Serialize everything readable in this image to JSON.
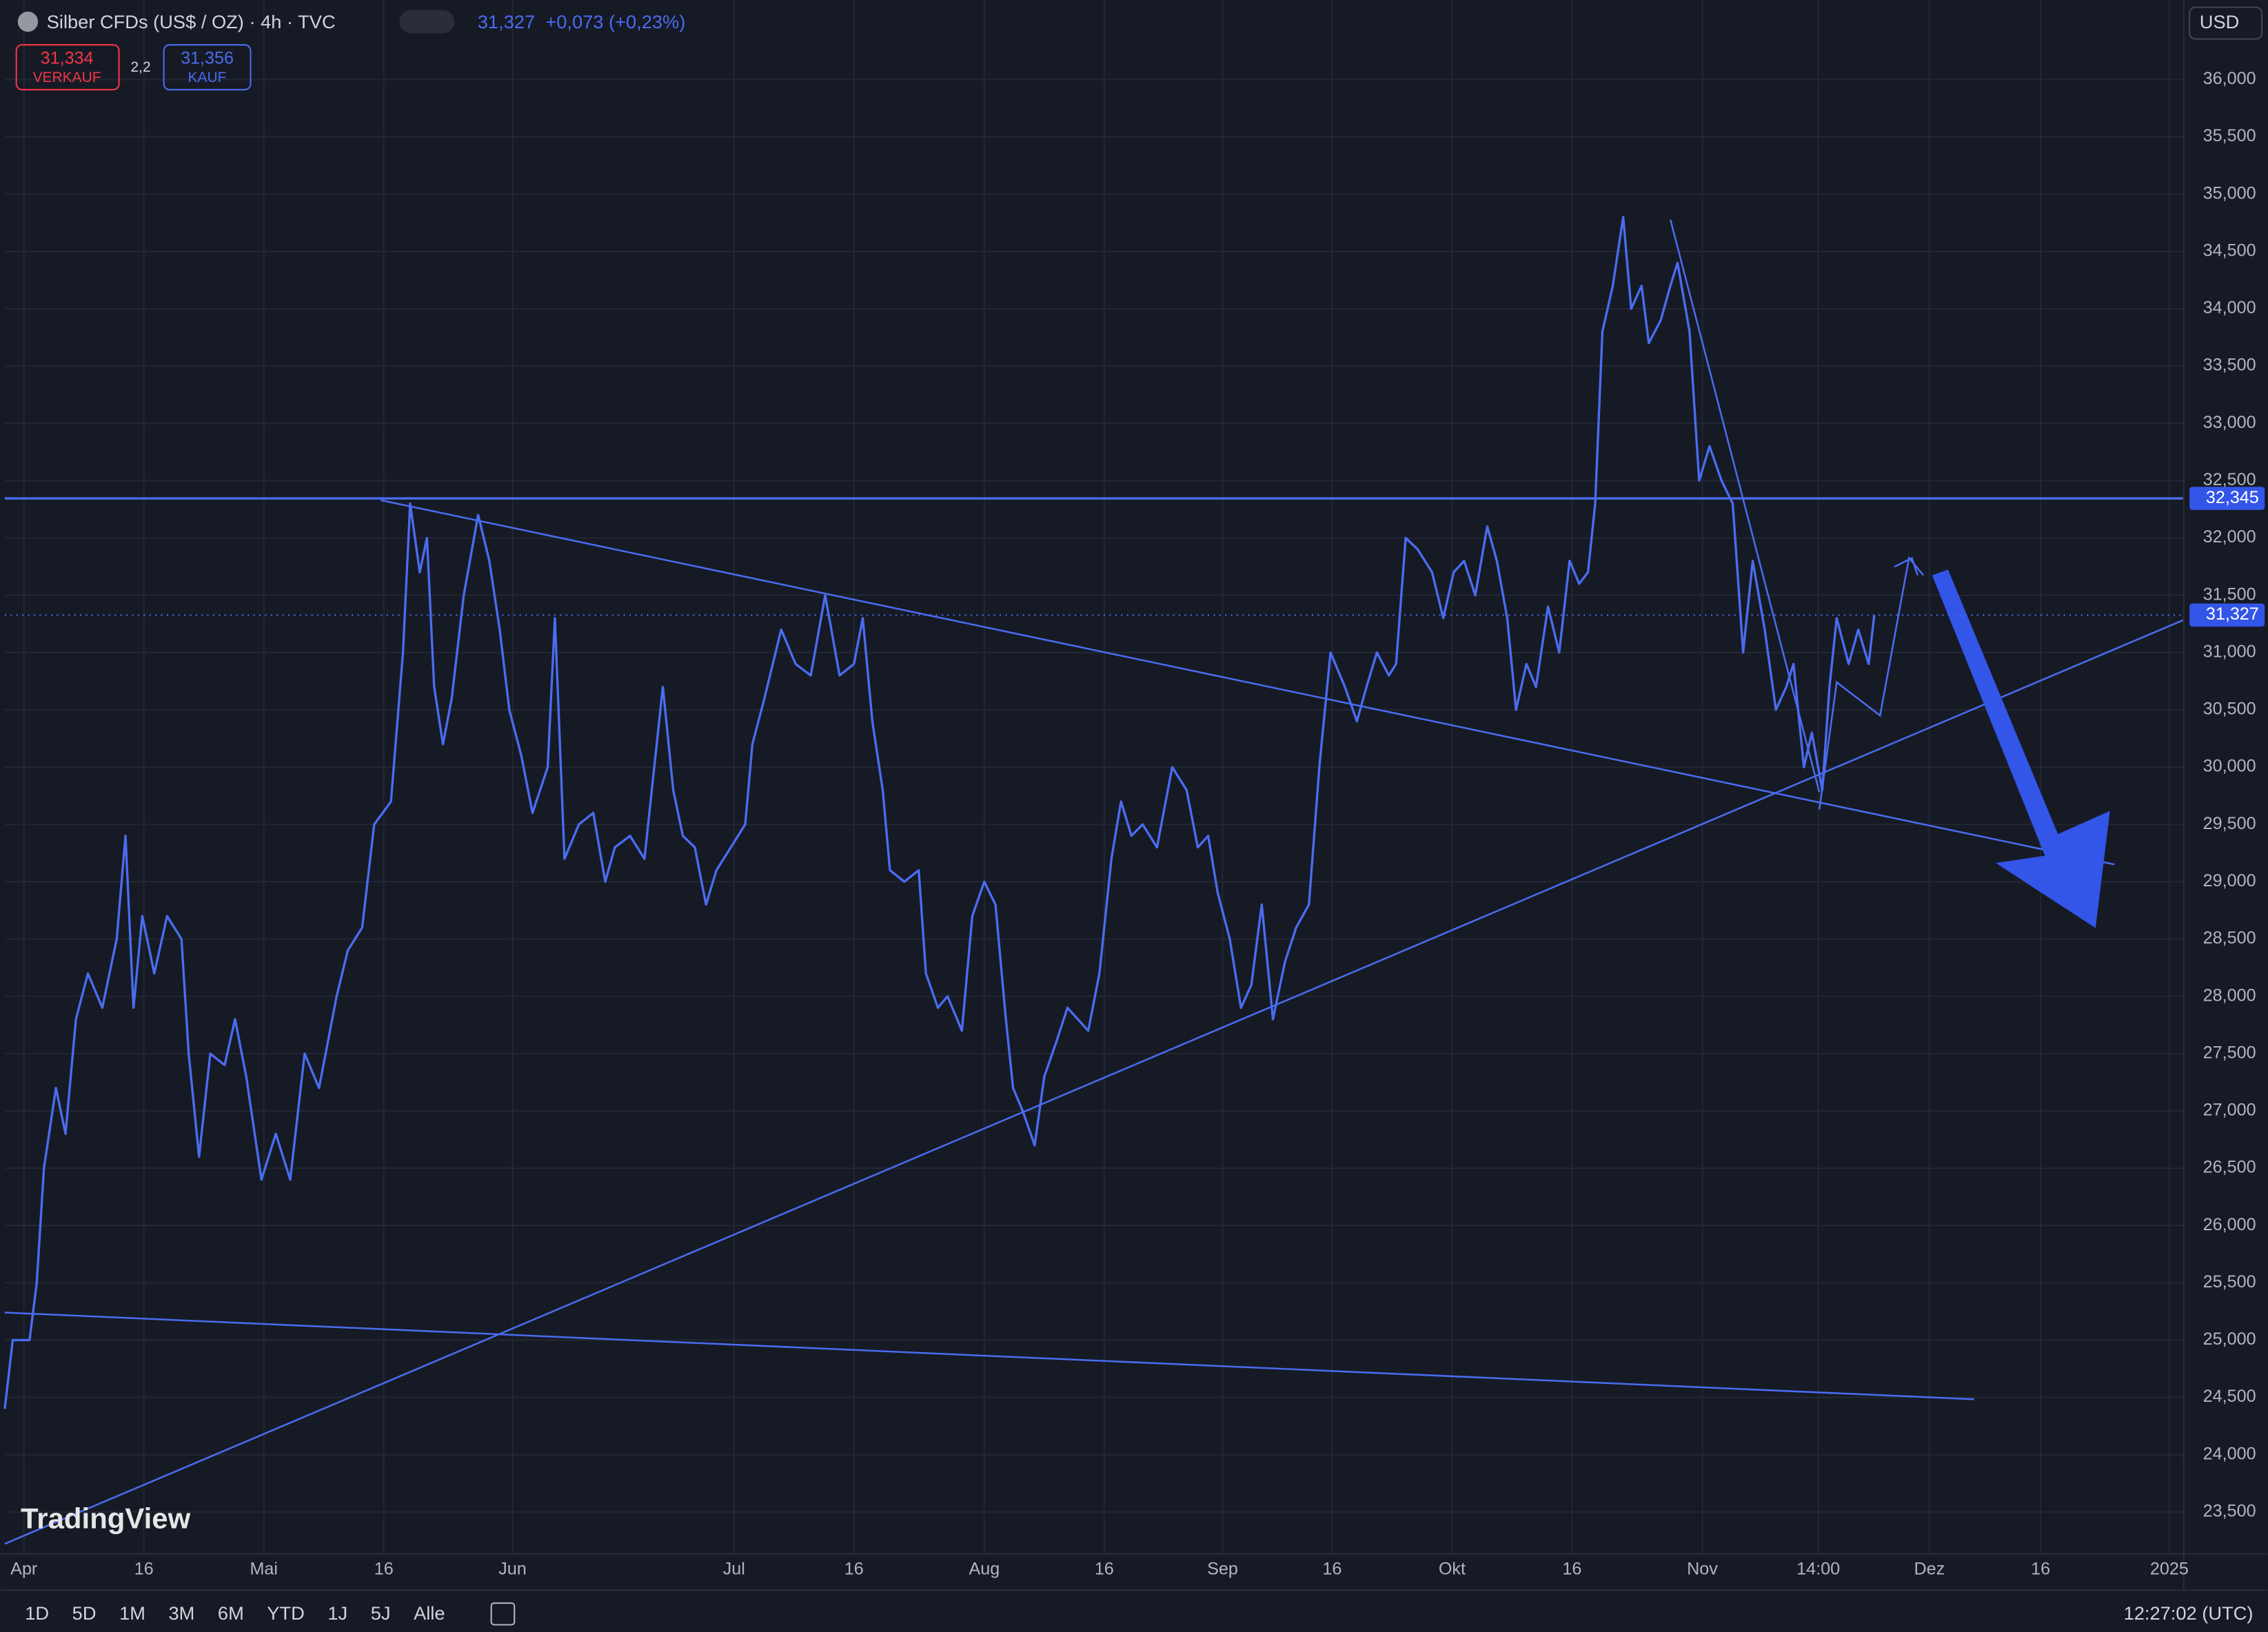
{
  "header": {
    "symbol": "Silber CFDs (US$ / OZ) · 4h · TVC",
    "quote": "31,327",
    "change": "+0,073 (+0,23%)",
    "sell_price": "31,334",
    "sell_label": "VERKAUF",
    "spread": "2,2",
    "buy_price": "31,356",
    "buy_label": "KAUF",
    "currency": "USD"
  },
  "watermark": "TradingView",
  "toolbar": {
    "ranges": [
      "1D",
      "5D",
      "1M",
      "3M",
      "6M",
      "YTD",
      "1J",
      "5J",
      "Alle"
    ],
    "clock": "12:27:02 (UTC)"
  },
  "chart_data": {
    "type": "line",
    "series": [
      {
        "name": "Silber CFDs",
        "color": "#4a6cf0",
        "x": [
          -2.4,
          -1.4,
          0.7,
          1.6,
          2.5,
          4.0,
          5.2,
          6.5,
          8.0,
          9.8,
          11.6,
          12.7,
          13.7,
          14.8,
          16.3,
          17.9,
          19.7,
          20.6,
          21.9,
          23.3,
          25.1,
          26.4,
          27.8,
          29.7,
          31.5,
          33.3,
          35.1,
          36.9,
          39.1,
          40.5,
          42.3,
          43.8,
          45.9,
          47.4,
          48.3,
          49.5,
          50.4,
          51.3,
          52.4,
          53.5,
          55.0,
          56.8,
          58.2,
          59.5,
          60.7,
          62.2,
          63.6,
          65.5,
          66.4,
          67.6,
          69.4,
          71.2,
          72.7,
          73.9,
          75.8,
          77.6,
          79.9,
          81.2,
          82.4,
          83.9,
          85.3,
          86.6,
          88.4,
          90.2,
          91.1,
          92.6,
          94.7,
          96.5,
          98.4,
          100.2,
          102.0,
          103.8,
          104.9,
          106.1,
          107.4,
          108.3,
          110.1,
          111.9,
          112.8,
          114.3,
          115.5,
          117.3,
          118.6,
          120.1,
          121.5,
          122.8,
          123.7,
          124.9,
          126.4,
          127.6,
          129.1,
          130.5,
          131.8,
          133.1,
          134.5,
          136.0,
          137.2,
          138.5,
          139.9,
          141.7,
          143.6,
          145.4,
          146.8,
          148.1,
          149.3,
          150.8,
          152.2,
          153.5,
          154.8,
          156.2,
          157.7,
          159.1,
          160.7,
          162.0,
          163.4,
          165.2,
          166.7,
          167.9,
          169.2,
          170.7,
          171.6,
          172.8,
          174.3,
          176.1,
          177.5,
          178.8,
          180.1,
          181.5,
          183.0,
          184.2,
          185.5,
          186.6,
          187.9,
          189.1,
          190.6,
          192.0,
          193.3,
          194.5,
          195.6,
          196.5,
          197.4,
          198.7,
          200.0,
          201.0,
          202.3,
          203.2,
          204.7,
          205.9,
          206.8,
          208.3,
          209.5,
          210.8,
          212.3,
          213.7,
          215.0,
          216.2,
          217.7,
          219.1,
          220.4,
          221.3,
          222.6,
          223.6,
          224.9,
          225.8,
          226.7,
          228.2,
          229.4,
          230.7,
          231.4
        ],
        "values": [
          24400,
          25000,
          25000,
          25500,
          26500,
          27200,
          26800,
          27800,
          28200,
          27900,
          28500,
          29400,
          27900,
          28700,
          28200,
          28700,
          28500,
          27500,
          26600,
          27500,
          27400,
          27800,
          27300,
          26400,
          26800,
          26400,
          27500,
          27200,
          28000,
          28400,
          28600,
          29500,
          29700,
          31000,
          32300,
          31700,
          32000,
          30700,
          30200,
          30600,
          31500,
          32200,
          31800,
          31200,
          30500,
          30100,
          29600,
          30000,
          31300,
          29200,
          29500,
          29600,
          29000,
          29300,
          29400,
          29200,
          30700,
          29800,
          29400,
          29300,
          28800,
          29100,
          29300,
          29500,
          30200,
          30600,
          31200,
          30900,
          30800,
          31500,
          30800,
          30900,
          31300,
          30400,
          29800,
          29100,
          29000,
          29100,
          28200,
          27900,
          28000,
          27700,
          28700,
          29000,
          28800,
          27800,
          27200,
          27000,
          26700,
          27300,
          27600,
          27900,
          27800,
          27700,
          28200,
          29200,
          29700,
          29400,
          29500,
          29300,
          30000,
          29800,
          29300,
          29400,
          28900,
          28500,
          27900,
          28100,
          28800,
          27800,
          28300,
          28600,
          28800,
          30000,
          31000,
          30700,
          30400,
          30700,
          31000,
          30800,
          30900,
          32000,
          31900,
          31700,
          31300,
          31700,
          31800,
          31500,
          32100,
          31800,
          31300,
          30500,
          30900,
          30700,
          31400,
          31000,
          31800,
          31600,
          31700,
          32300,
          33800,
          34200,
          34800,
          34000,
          34200,
          33700,
          33900,
          34200,
          34400,
          33800,
          32500,
          32800,
          32500,
          32300,
          31000,
          31800,
          31200,
          30500,
          30700,
          30900,
          30000,
          30300,
          29800,
          30700,
          31300,
          30900,
          31200,
          30900,
          31327
        ]
      }
    ],
    "price_lines": [
      {
        "value": 32345,
        "label": "32,345",
        "style": "solid"
      },
      {
        "value": 31327,
        "label": "31,327",
        "style": "dotted"
      }
    ],
    "xlim": [
      -2.4,
      270.1
    ],
    "xticks": [
      {
        "value": 0,
        "label": "Apr"
      },
      {
        "value": 15.0,
        "label": "16"
      },
      {
        "value": 30.0,
        "label": "Mai"
      },
      {
        "value": 45.0,
        "label": "16"
      },
      {
        "value": 61.1,
        "label": "Jun"
      },
      {
        "value": 88.8,
        "label": "Jul"
      },
      {
        "value": 103.8,
        "label": "16"
      },
      {
        "value": 120.1,
        "label": "Aug"
      },
      {
        "value": 135.1,
        "label": "16"
      },
      {
        "value": 149.9,
        "label": "Sep"
      },
      {
        "value": 163.6,
        "label": "16"
      },
      {
        "value": 178.6,
        "label": "Okt"
      },
      {
        "value": 193.6,
        "label": "16"
      },
      {
        "value": 209.9,
        "label": "Nov"
      },
      {
        "value": 224.4,
        "label": "14:00"
      },
      {
        "value": 238.3,
        "label": "Dez"
      },
      {
        "value": 252.2,
        "label": "16"
      },
      {
        "value": 268.3,
        "label": "2025"
      }
    ],
    "ylim": [
      23134,
      36694
    ],
    "yticks": [
      {
        "value": 23500,
        "label": "23,500"
      },
      {
        "value": 24000,
        "label": "24,000"
      },
      {
        "value": 24500,
        "label": "24,500"
      },
      {
        "value": 25000,
        "label": "25,000"
      },
      {
        "value": 25500,
        "label": "25,500"
      },
      {
        "value": 26000,
        "label": "26,000"
      },
      {
        "value": 26500,
        "label": "26,500"
      },
      {
        "value": 27000,
        "label": "27,000"
      },
      {
        "value": 27500,
        "label": "27,500"
      },
      {
        "value": 28000,
        "label": "28,000"
      },
      {
        "value": 28500,
        "label": "28,500"
      },
      {
        "value": 29000,
        "label": "29,000"
      },
      {
        "value": 29500,
        "label": "29,500"
      },
      {
        "value": 30000,
        "label": "30,000"
      },
      {
        "value": 30500,
        "label": "30,500"
      },
      {
        "value": 31000,
        "label": "31,000"
      },
      {
        "value": 31500,
        "label": "31,500"
      },
      {
        "value": 32000,
        "label": "32,000"
      },
      {
        "value": 32500,
        "label": "32,500"
      },
      {
        "value": 33000,
        "label": "33,000"
      },
      {
        "value": 33500,
        "label": "33,500"
      },
      {
        "value": 34000,
        "label": "34,000"
      },
      {
        "value": 34500,
        "label": "34,500"
      },
      {
        "value": 35000,
        "label": "35,000"
      },
      {
        "value": 35500,
        "label": "35,500"
      },
      {
        "value": 36000,
        "label": "36,000"
      }
    ],
    "grid": true
  }
}
